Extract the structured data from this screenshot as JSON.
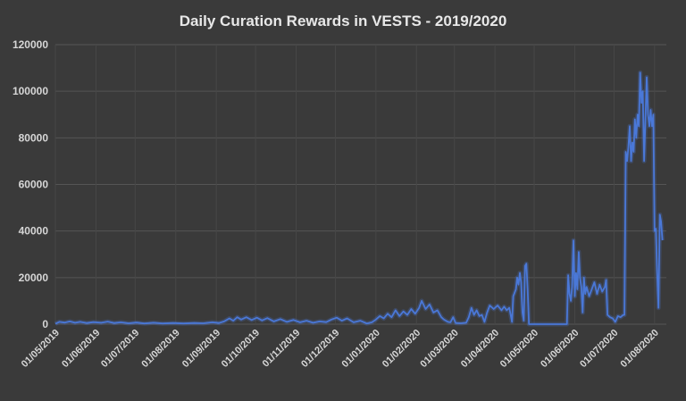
{
  "chart_data": {
    "type": "line",
    "title": "Daily Curation Rewards in VESTS - 2019/2020",
    "xlabel": "",
    "ylabel": "",
    "x_range": [
      "2019-05-01",
      "2020-08-10"
    ],
    "ylim": [
      0,
      120000
    ],
    "y_ticks": [
      "0",
      "20000",
      "40000",
      "60000",
      "80000",
      "100000",
      "120000"
    ],
    "x_ticks": [
      {
        "date": "2019-05-01",
        "label": "01/05/2019"
      },
      {
        "date": "2019-06-01",
        "label": "01/06/2019"
      },
      {
        "date": "2019-07-01",
        "label": "01/07/2019"
      },
      {
        "date": "2019-08-01",
        "label": "01/08/2019"
      },
      {
        "date": "2019-09-01",
        "label": "01/09/2019"
      },
      {
        "date": "2019-10-01",
        "label": "01/10/2019"
      },
      {
        "date": "2019-11-01",
        "label": "01/11/2019"
      },
      {
        "date": "2019-12-01",
        "label": "01/12/2019"
      },
      {
        "date": "2020-01-01",
        "label": "01/01/2020"
      },
      {
        "date": "2020-02-01",
        "label": "01/02/2020"
      },
      {
        "date": "2020-03-01",
        "label": "01/03/2020"
      },
      {
        "date": "2020-04-01",
        "label": "01/04/2020"
      },
      {
        "date": "2020-05-01",
        "label": "01/05/2020"
      },
      {
        "date": "2020-06-01",
        "label": "01/06/2020"
      },
      {
        "date": "2020-07-01",
        "label": "01/07/2020"
      },
      {
        "date": "2020-08-01",
        "label": "01/08/2020"
      }
    ],
    "grid": {
      "horizontal": true,
      "vertical": true
    },
    "legend": "none",
    "series": [
      {
        "color": "#4a78d8",
        "points": [
          [
            "2019-05-01",
            200
          ],
          [
            "2019-05-04",
            1000
          ],
          [
            "2019-05-08",
            700
          ],
          [
            "2019-05-12",
            1200
          ],
          [
            "2019-05-16",
            600
          ],
          [
            "2019-05-20",
            1000
          ],
          [
            "2019-05-25",
            500
          ],
          [
            "2019-05-30",
            900
          ],
          [
            "2019-06-05",
            600
          ],
          [
            "2019-06-10",
            1100
          ],
          [
            "2019-06-15",
            500
          ],
          [
            "2019-06-20",
            800
          ],
          [
            "2019-06-26",
            400
          ],
          [
            "2019-07-02",
            700
          ],
          [
            "2019-07-08",
            300
          ],
          [
            "2019-07-15",
            600
          ],
          [
            "2019-07-22",
            300
          ],
          [
            "2019-07-30",
            500
          ],
          [
            "2019-08-07",
            300
          ],
          [
            "2019-08-15",
            500
          ],
          [
            "2019-08-22",
            400
          ],
          [
            "2019-08-29",
            800
          ],
          [
            "2019-09-03",
            500
          ],
          [
            "2019-09-07",
            1200
          ],
          [
            "2019-09-11",
            2500
          ],
          [
            "2019-09-14",
            1500
          ],
          [
            "2019-09-17",
            3000
          ],
          [
            "2019-09-20",
            2000
          ],
          [
            "2019-09-24",
            3000
          ],
          [
            "2019-09-28",
            1800
          ],
          [
            "2019-10-02",
            2800
          ],
          [
            "2019-10-06",
            1600
          ],
          [
            "2019-10-10",
            2600
          ],
          [
            "2019-10-15",
            1200
          ],
          [
            "2019-10-20",
            2200
          ],
          [
            "2019-10-25",
            1000
          ],
          [
            "2019-10-30",
            1800
          ],
          [
            "2019-11-04",
            800
          ],
          [
            "2019-11-09",
            1500
          ],
          [
            "2019-11-14",
            600
          ],
          [
            "2019-11-19",
            1200
          ],
          [
            "2019-11-24",
            900
          ],
          [
            "2019-11-28",
            2000
          ],
          [
            "2019-12-02",
            2800
          ],
          [
            "2019-12-06",
            1500
          ],
          [
            "2019-12-10",
            2500
          ],
          [
            "2019-12-15",
            800
          ],
          [
            "2019-12-20",
            1500
          ],
          [
            "2019-12-25",
            300
          ],
          [
            "2019-12-29",
            800
          ],
          [
            "2020-01-01",
            2000
          ],
          [
            "2020-01-04",
            3500
          ],
          [
            "2020-01-07",
            2500
          ],
          [
            "2020-01-10",
            4500
          ],
          [
            "2020-01-13",
            3000
          ],
          [
            "2020-01-16",
            6000
          ],
          [
            "2020-01-19",
            3500
          ],
          [
            "2020-01-22",
            5500
          ],
          [
            "2020-01-25",
            4000
          ],
          [
            "2020-01-28",
            6500
          ],
          [
            "2020-01-31",
            4500
          ],
          [
            "2020-02-03",
            7000
          ],
          [
            "2020-02-05",
            10000
          ],
          [
            "2020-02-08",
            6500
          ],
          [
            "2020-02-11",
            8500
          ],
          [
            "2020-02-14",
            5000
          ],
          [
            "2020-02-17",
            6000
          ],
          [
            "2020-02-20",
            3000
          ],
          [
            "2020-02-22",
            2000
          ],
          [
            "2020-02-25",
            1000
          ],
          [
            "2020-02-27",
            800
          ],
          [
            "2020-02-29",
            3000
          ],
          [
            "2020-03-02",
            500
          ],
          [
            "2020-03-06",
            400
          ],
          [
            "2020-03-10",
            600
          ],
          [
            "2020-03-12",
            3000
          ],
          [
            "2020-03-14",
            7000
          ],
          [
            "2020-03-16",
            4000
          ],
          [
            "2020-03-18",
            6000
          ],
          [
            "2020-03-20",
            3500
          ],
          [
            "2020-03-22",
            4000
          ],
          [
            "2020-03-24",
            1000
          ],
          [
            "2020-03-26",
            5000
          ],
          [
            "2020-03-28",
            8000
          ],
          [
            "2020-03-31",
            6500
          ],
          [
            "2020-04-03",
            8000
          ],
          [
            "2020-04-06",
            6000
          ],
          [
            "2020-04-08",
            7500
          ],
          [
            "2020-04-10",
            6000
          ],
          [
            "2020-04-12",
            7000
          ],
          [
            "2020-04-14",
            1000
          ],
          [
            "2020-04-15",
            12000
          ],
          [
            "2020-04-17",
            15000
          ],
          [
            "2020-04-18",
            20000
          ],
          [
            "2020-04-19",
            17000
          ],
          [
            "2020-04-20",
            22000
          ],
          [
            "2020-04-21",
            18000
          ],
          [
            "2020-04-22",
            5000
          ],
          [
            "2020-04-23",
            1500
          ],
          [
            "2020-04-24",
            25000
          ],
          [
            "2020-04-25",
            26000
          ],
          [
            "2020-04-26",
            15000
          ],
          [
            "2020-04-27",
            0
          ],
          [
            "2020-05-26",
            0
          ],
          [
            "2020-05-27",
            21000
          ],
          [
            "2020-05-28",
            13000
          ],
          [
            "2020-05-29",
            10000
          ],
          [
            "2020-05-30",
            16000
          ],
          [
            "2020-05-31",
            36000
          ],
          [
            "2020-06-01",
            12000
          ],
          [
            "2020-06-02",
            22000
          ],
          [
            "2020-06-03",
            15000
          ],
          [
            "2020-06-04",
            31000
          ],
          [
            "2020-06-05",
            20000
          ],
          [
            "2020-06-06",
            16000
          ],
          [
            "2020-06-07",
            5000
          ],
          [
            "2020-06-08",
            20000
          ],
          [
            "2020-06-09",
            13000
          ],
          [
            "2020-06-10",
            16000
          ],
          [
            "2020-06-12",
            12000
          ],
          [
            "2020-06-14",
            15000
          ],
          [
            "2020-06-16",
            18000
          ],
          [
            "2020-06-18",
            13000
          ],
          [
            "2020-06-20",
            17000
          ],
          [
            "2020-06-22",
            14000
          ],
          [
            "2020-06-24",
            16000
          ],
          [
            "2020-06-25",
            19000
          ],
          [
            "2020-06-26",
            4000
          ],
          [
            "2020-06-28",
            3000
          ],
          [
            "2020-06-30",
            2500
          ],
          [
            "2020-07-02",
            1000
          ],
          [
            "2020-07-04",
            3500
          ],
          [
            "2020-07-06",
            3000
          ],
          [
            "2020-07-08",
            4000
          ],
          [
            "2020-07-09",
            4000
          ],
          [
            "2020-07-10",
            74000
          ],
          [
            "2020-07-11",
            70000
          ],
          [
            "2020-07-12",
            76000
          ],
          [
            "2020-07-13",
            85000
          ],
          [
            "2020-07-14",
            70000
          ],
          [
            "2020-07-15",
            78000
          ],
          [
            "2020-07-16",
            74000
          ],
          [
            "2020-07-17",
            88000
          ],
          [
            "2020-07-18",
            80000
          ],
          [
            "2020-07-19",
            90000
          ],
          [
            "2020-07-20",
            85000
          ],
          [
            "2020-07-21",
            108000
          ],
          [
            "2020-07-22",
            95000
          ],
          [
            "2020-07-23",
            100000
          ],
          [
            "2020-07-24",
            70000
          ],
          [
            "2020-07-25",
            88000
          ],
          [
            "2020-07-26",
            106000
          ],
          [
            "2020-07-27",
            90000
          ],
          [
            "2020-07-28",
            85000
          ],
          [
            "2020-07-29",
            92000
          ],
          [
            "2020-07-30",
            85000
          ],
          [
            "2020-07-31",
            90000
          ],
          [
            "2020-08-01",
            40000
          ],
          [
            "2020-08-02",
            41000
          ],
          [
            "2020-08-03",
            22000
          ],
          [
            "2020-08-04",
            7000
          ],
          [
            "2020-08-05",
            47000
          ],
          [
            "2020-08-06",
            44000
          ],
          [
            "2020-08-07",
            36000
          ]
        ]
      }
    ]
  }
}
